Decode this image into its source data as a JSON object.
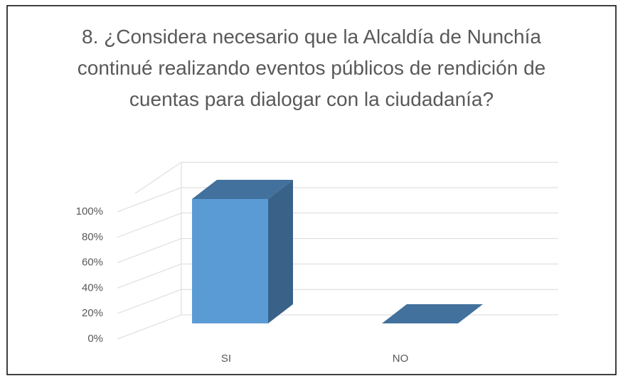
{
  "chart_data": {
    "type": "bar3d",
    "title": "8.  ¿Considera necesario que la Alcaldía de Nunchía continué realizando eventos públicos de rendición de cuentas para dialogar con la ciudadanía?",
    "categories": [
      "SI",
      "NO"
    ],
    "values": [
      100,
      0
    ],
    "color": "#5b9bd5",
    "ylim": [
      0,
      120
    ],
    "yticks": [
      {
        "value": 0,
        "label": "0%"
      },
      {
        "value": 20,
        "label": "20%"
      },
      {
        "value": 40,
        "label": "40%"
      },
      {
        "value": 60,
        "label": "60%"
      },
      {
        "value": 80,
        "label": "80%"
      },
      {
        "value": 100,
        "label": "100%"
      }
    ],
    "grid": true
  }
}
